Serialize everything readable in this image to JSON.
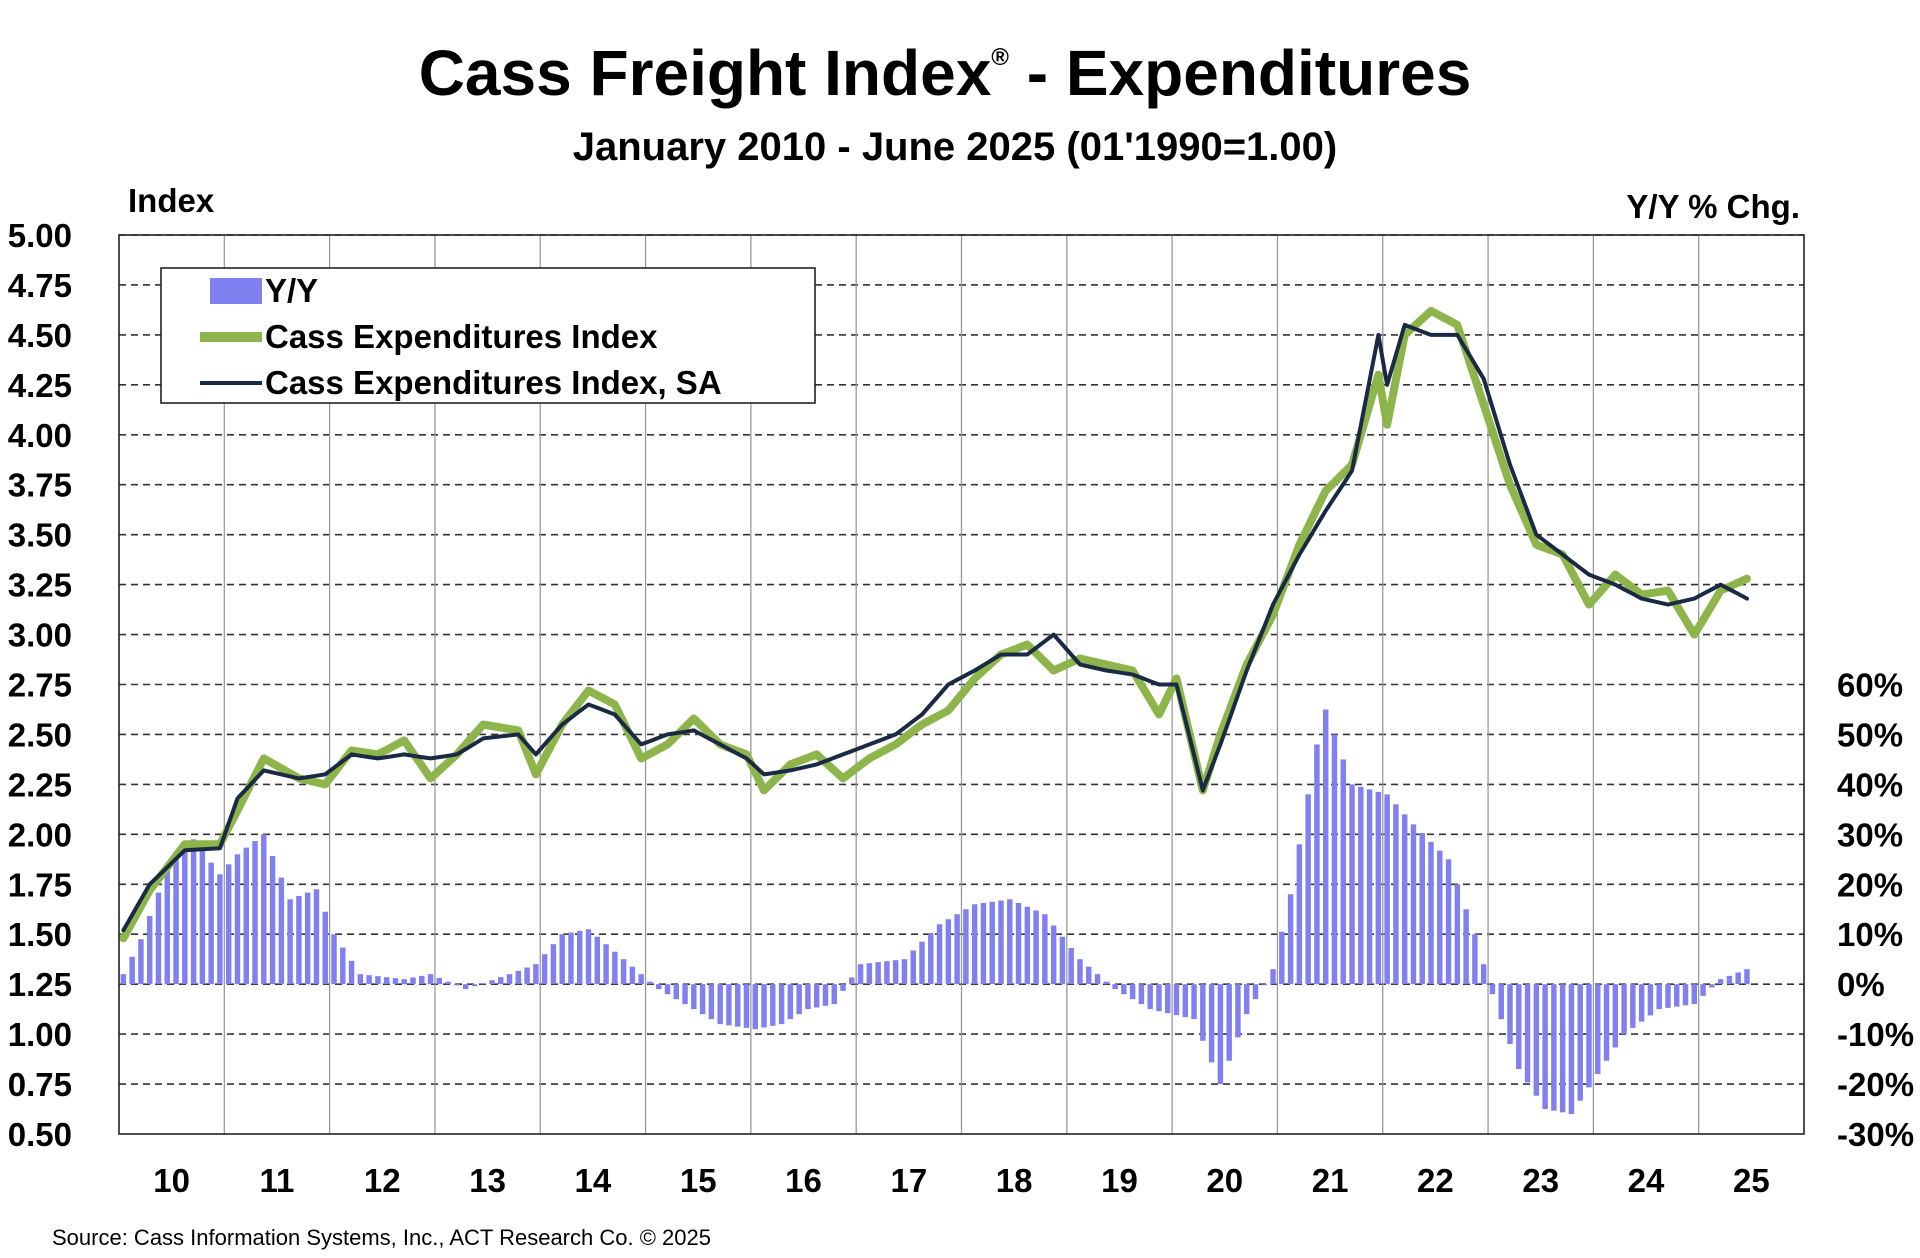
{
  "chart_data": {
    "type": "line",
    "title": "Cass Freight Index",
    "title_mark": "®",
    "title_suffix": " - Expenditures",
    "subtitle": "January 2010 - June 2025 (01'1990=1.00)",
    "left_axis_label": "Index",
    "right_axis_label": "Y/Y % Chg.",
    "left_ylim": [
      0.5,
      5.0
    ],
    "left_ticks": [
      "0.50",
      "0.75",
      "1.00",
      "1.25",
      "1.50",
      "1.75",
      "2.00",
      "2.25",
      "2.50",
      "2.75",
      "3.00",
      "3.25",
      "3.50",
      "3.75",
      "4.00",
      "4.25",
      "4.50",
      "4.75",
      "5.00"
    ],
    "right_ylim": [
      -30,
      60
    ],
    "right_ticks": [
      "60%",
      "50%",
      "40%",
      "30%",
      "20%",
      "10%",
      "0%",
      "-10%",
      "-20%",
      "-30%"
    ],
    "x_start": "2010-01",
    "x_end": "2025-06",
    "year_labels": [
      "10",
      "11",
      "12",
      "13",
      "14",
      "15",
      "16",
      "17",
      "18",
      "19",
      "20",
      "21",
      "22",
      "23",
      "24",
      "25"
    ],
    "grid": true,
    "legend_position": "top-left",
    "series": [
      {
        "name": "Y/Y",
        "type": "bar",
        "axis": "right",
        "color": "#8080f0",
        "key_points": [
          [
            "2010-01",
            2
          ],
          [
            "2010-03",
            9
          ],
          [
            "2010-06",
            23
          ],
          [
            "2010-09",
            29
          ],
          [
            "2010-12",
            22
          ],
          [
            "2011-02",
            26
          ],
          [
            "2011-05",
            30
          ],
          [
            "2011-08",
            17
          ],
          [
            "2011-11",
            19
          ],
          [
            "2012-01",
            10
          ],
          [
            "2012-04",
            2
          ],
          [
            "2012-09",
            1
          ],
          [
            "2012-12",
            2
          ],
          [
            "2013-04",
            -1
          ],
          [
            "2013-09",
            2
          ],
          [
            "2013-12",
            4
          ],
          [
            "2014-03",
            10
          ],
          [
            "2014-06",
            11
          ],
          [
            "2014-10",
            5
          ],
          [
            "2015-02",
            -1
          ],
          [
            "2015-06",
            -5
          ],
          [
            "2015-09",
            -8
          ],
          [
            "2016-01",
            -9
          ],
          [
            "2016-04",
            -8
          ],
          [
            "2016-07",
            -5
          ],
          [
            "2016-10",
            -4
          ],
          [
            "2017-01",
            4
          ],
          [
            "2017-06",
            5
          ],
          [
            "2017-10",
            12
          ],
          [
            "2018-02",
            16
          ],
          [
            "2018-06",
            17
          ],
          [
            "2018-10",
            14
          ],
          [
            "2019-02",
            5
          ],
          [
            "2019-06",
            -1
          ],
          [
            "2019-10",
            -5
          ],
          [
            "2020-03",
            -7
          ],
          [
            "2020-06",
            -20
          ],
          [
            "2020-09",
            -6
          ],
          [
            "2020-12",
            3
          ],
          [
            "2021-02",
            18
          ],
          [
            "2021-05",
            48
          ],
          [
            "2021-06",
            55
          ],
          [
            "2021-09",
            40
          ],
          [
            "2022-01",
            38
          ],
          [
            "2022-04",
            32
          ],
          [
            "2022-08",
            25
          ],
          [
            "2022-11",
            10
          ],
          [
            "2023-01",
            -2
          ],
          [
            "2023-04",
            -17
          ],
          [
            "2023-07",
            -25
          ],
          [
            "2023-10",
            -26
          ],
          [
            "2024-01",
            -18
          ],
          [
            "2024-04",
            -10
          ],
          [
            "2024-08",
            -5
          ],
          [
            "2024-12",
            -4
          ],
          [
            "2025-03",
            1
          ],
          [
            "2025-06",
            3
          ]
        ]
      },
      {
        "name": "Cass Expenditures Index",
        "type": "line",
        "axis": "left",
        "color": "#8db54b",
        "key_points": [
          [
            "2010-01",
            1.48
          ],
          [
            "2010-04",
            1.72
          ],
          [
            "2010-08",
            1.95
          ],
          [
            "2010-12",
            1.95
          ],
          [
            "2011-02",
            2.12
          ],
          [
            "2011-05",
            2.38
          ],
          [
            "2011-09",
            2.28
          ],
          [
            "2011-12",
            2.25
          ],
          [
            "2012-03",
            2.42
          ],
          [
            "2012-06",
            2.4
          ],
          [
            "2012-09",
            2.47
          ],
          [
            "2012-12",
            2.28
          ],
          [
            "2013-03",
            2.4
          ],
          [
            "2013-06",
            2.55
          ],
          [
            "2013-10",
            2.52
          ],
          [
            "2013-12",
            2.3
          ],
          [
            "2014-03",
            2.55
          ],
          [
            "2014-06",
            2.72
          ],
          [
            "2014-09",
            2.65
          ],
          [
            "2014-12",
            2.38
          ],
          [
            "2015-03",
            2.45
          ],
          [
            "2015-06",
            2.58
          ],
          [
            "2015-09",
            2.45
          ],
          [
            "2015-12",
            2.4
          ],
          [
            "2016-02",
            2.22
          ],
          [
            "2016-05",
            2.35
          ],
          [
            "2016-08",
            2.4
          ],
          [
            "2016-11",
            2.28
          ],
          [
            "2017-02",
            2.38
          ],
          [
            "2017-05",
            2.45
          ],
          [
            "2017-08",
            2.55
          ],
          [
            "2017-11",
            2.62
          ],
          [
            "2018-02",
            2.78
          ],
          [
            "2018-05",
            2.9
          ],
          [
            "2018-08",
            2.95
          ],
          [
            "2018-11",
            2.82
          ],
          [
            "2019-02",
            2.88
          ],
          [
            "2019-05",
            2.85
          ],
          [
            "2019-08",
            2.82
          ],
          [
            "2019-11",
            2.6
          ],
          [
            "2020-01",
            2.78
          ],
          [
            "2020-04",
            2.22
          ],
          [
            "2020-06",
            2.5
          ],
          [
            "2020-09",
            2.85
          ],
          [
            "2020-12",
            3.1
          ],
          [
            "2021-03",
            3.45
          ],
          [
            "2021-06",
            3.72
          ],
          [
            "2021-09",
            3.85
          ],
          [
            "2021-12",
            4.3
          ],
          [
            "2022-01",
            4.05
          ],
          [
            "2022-03",
            4.5
          ],
          [
            "2022-06",
            4.62
          ],
          [
            "2022-09",
            4.55
          ],
          [
            "2022-12",
            4.15
          ],
          [
            "2023-03",
            3.75
          ],
          [
            "2023-06",
            3.45
          ],
          [
            "2023-09",
            3.4
          ],
          [
            "2023-12",
            3.15
          ],
          [
            "2024-03",
            3.3
          ],
          [
            "2024-06",
            3.2
          ],
          [
            "2024-09",
            3.22
          ],
          [
            "2024-12",
            3.0
          ],
          [
            "2025-03",
            3.22
          ],
          [
            "2025-06",
            3.28
          ]
        ]
      },
      {
        "name": "Cass Expenditures Index, SA",
        "type": "line",
        "axis": "left",
        "color": "#1a2a44",
        "key_points": [
          [
            "2010-01",
            1.52
          ],
          [
            "2010-04",
            1.75
          ],
          [
            "2010-08",
            1.92
          ],
          [
            "2010-12",
            1.93
          ],
          [
            "2011-02",
            2.18
          ],
          [
            "2011-05",
            2.32
          ],
          [
            "2011-09",
            2.28
          ],
          [
            "2011-12",
            2.3
          ],
          [
            "2012-03",
            2.4
          ],
          [
            "2012-06",
            2.38
          ],
          [
            "2012-09",
            2.4
          ],
          [
            "2012-12",
            2.38
          ],
          [
            "2013-03",
            2.4
          ],
          [
            "2013-06",
            2.48
          ],
          [
            "2013-10",
            2.5
          ],
          [
            "2013-12",
            2.4
          ],
          [
            "2014-03",
            2.55
          ],
          [
            "2014-06",
            2.65
          ],
          [
            "2014-09",
            2.6
          ],
          [
            "2014-12",
            2.45
          ],
          [
            "2015-03",
            2.5
          ],
          [
            "2015-06",
            2.52
          ],
          [
            "2015-09",
            2.45
          ],
          [
            "2015-12",
            2.38
          ],
          [
            "2016-02",
            2.3
          ],
          [
            "2016-05",
            2.32
          ],
          [
            "2016-08",
            2.35
          ],
          [
            "2016-11",
            2.4
          ],
          [
            "2017-02",
            2.45
          ],
          [
            "2017-05",
            2.5
          ],
          [
            "2017-08",
            2.6
          ],
          [
            "2017-11",
            2.75
          ],
          [
            "2018-02",
            2.82
          ],
          [
            "2018-05",
            2.9
          ],
          [
            "2018-08",
            2.9
          ],
          [
            "2018-11",
            3.0
          ],
          [
            "2019-02",
            2.85
          ],
          [
            "2019-05",
            2.82
          ],
          [
            "2019-08",
            2.8
          ],
          [
            "2019-11",
            2.75
          ],
          [
            "2020-01",
            2.75
          ],
          [
            "2020-04",
            2.22
          ],
          [
            "2020-06",
            2.45
          ],
          [
            "2020-09",
            2.82
          ],
          [
            "2020-12",
            3.15
          ],
          [
            "2021-03",
            3.4
          ],
          [
            "2021-06",
            3.62
          ],
          [
            "2021-09",
            3.82
          ],
          [
            "2021-12",
            4.5
          ],
          [
            "2022-01",
            4.25
          ],
          [
            "2022-03",
            4.55
          ],
          [
            "2022-06",
            4.5
          ],
          [
            "2022-09",
            4.5
          ],
          [
            "2022-12",
            4.28
          ],
          [
            "2023-03",
            3.85
          ],
          [
            "2023-06",
            3.5
          ],
          [
            "2023-09",
            3.4
          ],
          [
            "2023-12",
            3.3
          ],
          [
            "2024-03",
            3.25
          ],
          [
            "2024-06",
            3.18
          ],
          [
            "2024-09",
            3.15
          ],
          [
            "2024-12",
            3.18
          ],
          [
            "2025-03",
            3.25
          ],
          [
            "2025-06",
            3.18
          ]
        ]
      }
    ]
  },
  "source": "Source: Cass Information Systems, Inc., ACT Research Co. © 2025"
}
